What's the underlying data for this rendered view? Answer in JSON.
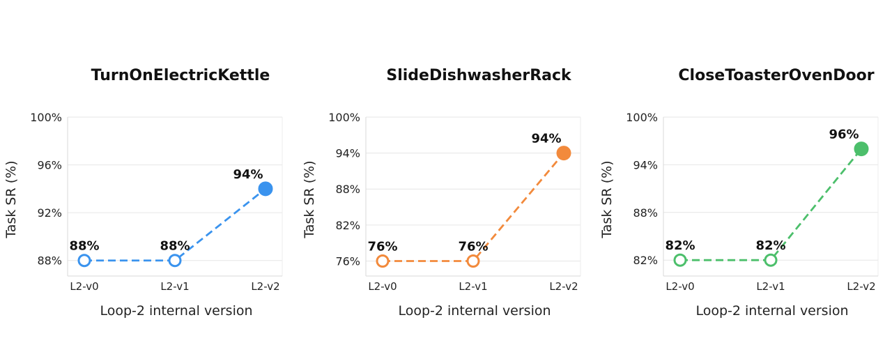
{
  "chart_data": [
    {
      "type": "line",
      "title": "TurnOnElectricKettle",
      "xlabel": "Loop-2 internal version",
      "ylabel": "Task SR (%)",
      "categories": [
        "L2-v0",
        "L2-v1",
        "L2-v2"
      ],
      "values": [
        88,
        88,
        94
      ],
      "point_labels": [
        "88%",
        "88%",
        "94%"
      ],
      "yticks": [
        88,
        92,
        96,
        100
      ],
      "ytick_labels": [
        "88%",
        "92%",
        "96%",
        "100%"
      ],
      "ylim": [
        86.7,
        100
      ],
      "color": "#3a93ee",
      "grid": true,
      "legend": "none"
    },
    {
      "type": "line",
      "title": "SlideDishwasherRack",
      "xlabel": "Loop-2 internal version",
      "ylabel": "Task SR (%)",
      "categories": [
        "L2-v0",
        "L2-v1",
        "L2-v2"
      ],
      "values": [
        76,
        76,
        94
      ],
      "point_labels": [
        "76%",
        "76%",
        "94%"
      ],
      "yticks": [
        76,
        82,
        88,
        94,
        100
      ],
      "ytick_labels": [
        "76%",
        "82%",
        "88%",
        "94%",
        "100%"
      ],
      "ylim": [
        73.5,
        100
      ],
      "color": "#f28a3c",
      "grid": true,
      "legend": "none"
    },
    {
      "type": "line",
      "title": "CloseToasterOvenDoor",
      "xlabel": "Loop-2 internal version",
      "ylabel": "Task SR (%)",
      "categories": [
        "L2-v0",
        "L2-v1",
        "L2-v2"
      ],
      "values": [
        82,
        82,
        96
      ],
      "point_labels": [
        "82%",
        "82%",
        "96%"
      ],
      "yticks": [
        82,
        88,
        94,
        100
      ],
      "ytick_labels": [
        "82%",
        "88%",
        "94%",
        "100%"
      ],
      "ylim": [
        80,
        100
      ],
      "color": "#4cbf6b",
      "grid": true,
      "legend": "none"
    }
  ]
}
